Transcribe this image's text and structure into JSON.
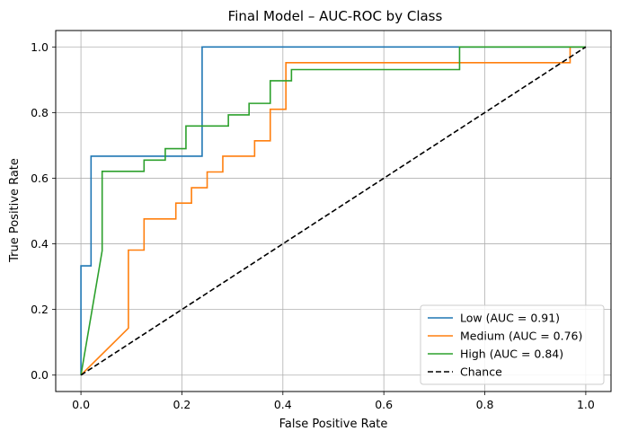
{
  "chart_data": {
    "type": "line",
    "title": "Final Model – AUC-ROC by Class",
    "xlabel": "False Positive Rate",
    "ylabel": "True Positive Rate",
    "xlim": [
      -0.05,
      1.05
    ],
    "ylim": [
      -0.05,
      1.05
    ],
    "xticks": [
      0.0,
      0.2,
      0.4,
      0.6,
      0.8,
      1.0
    ],
    "yticks": [
      0.0,
      0.2,
      0.4,
      0.6,
      0.8,
      1.0
    ],
    "xtick_labels": [
      "0.0",
      "0.2",
      "0.4",
      "0.6",
      "0.8",
      "1.0"
    ],
    "ytick_labels": [
      "0.0",
      "0.2",
      "0.4",
      "0.6",
      "0.8",
      "1.0"
    ],
    "grid": true,
    "legend_position": "lower-right",
    "series": [
      {
        "name": "Low (AUC = 0.91)",
        "color": "#1f77b4",
        "dash": "solid",
        "x": [
          0.0,
          0.0,
          0.02,
          0.02,
          0.24,
          0.24,
          1.0
        ],
        "y": [
          0.0,
          0.333,
          0.333,
          0.667,
          0.667,
          1.0,
          1.0
        ]
      },
      {
        "name": "Medium (AUC = 0.76)",
        "color": "#ff7f0e",
        "dash": "solid",
        "x": [
          0.0,
          0.094,
          0.094,
          0.125,
          0.125,
          0.188,
          0.188,
          0.219,
          0.219,
          0.25,
          0.25,
          0.281,
          0.281,
          0.344,
          0.344,
          0.375,
          0.375,
          0.406,
          0.406,
          0.969,
          0.969,
          1.0
        ],
        "y": [
          0.0,
          0.143,
          0.381,
          0.381,
          0.476,
          0.476,
          0.524,
          0.524,
          0.571,
          0.571,
          0.619,
          0.619,
          0.667,
          0.667,
          0.714,
          0.714,
          0.81,
          0.81,
          0.952,
          0.952,
          1.0,
          1.0
        ]
      },
      {
        "name": "High (AUC = 0.84)",
        "color": "#2ca02c",
        "dash": "solid",
        "x": [
          0.0,
          0.042,
          0.042,
          0.125,
          0.125,
          0.167,
          0.167,
          0.208,
          0.208,
          0.292,
          0.292,
          0.333,
          0.333,
          0.375,
          0.375,
          0.417,
          0.417,
          0.75,
          0.75,
          1.0
        ],
        "y": [
          0.0,
          0.379,
          0.621,
          0.621,
          0.655,
          0.655,
          0.69,
          0.69,
          0.759,
          0.759,
          0.793,
          0.793,
          0.828,
          0.828,
          0.897,
          0.897,
          0.931,
          0.931,
          1.0,
          1.0
        ]
      },
      {
        "name": "Chance",
        "color": "#000000",
        "dash": "dashed",
        "x": [
          0.0,
          1.0
        ],
        "y": [
          0.0,
          1.0
        ]
      }
    ]
  }
}
